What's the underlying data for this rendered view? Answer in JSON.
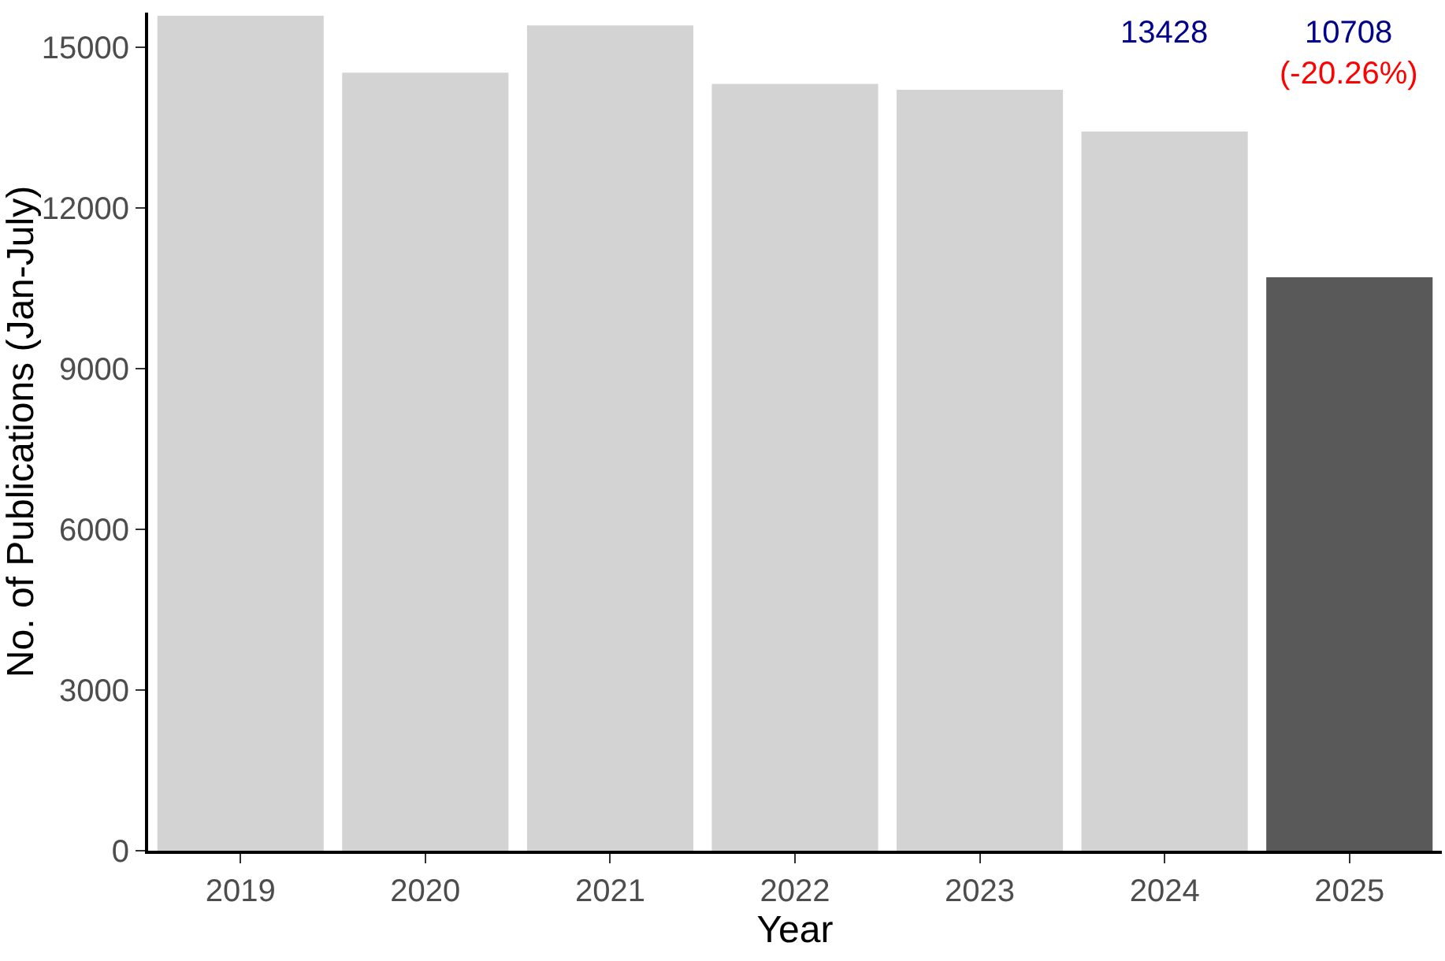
{
  "chart_data": {
    "type": "bar",
    "xlabel": "Year",
    "ylabel": "No. of Publications (Jan-July)",
    "categories": [
      "2019",
      "2020",
      "2021",
      "2022",
      "2023",
      "2024",
      "2025"
    ],
    "values": [
      15590,
      14530,
      15410,
      14320,
      14210,
      13428,
      10708
    ],
    "colors": [
      "#d3d3d3",
      "#d3d3d3",
      "#d3d3d3",
      "#d3d3d3",
      "#d3d3d3",
      "#d3d3d3",
      "#595959"
    ],
    "annotations": [
      "13428",
      "10708",
      "(-20.26%)"
    ],
    "ylim": [
      0,
      15650
    ],
    "yticks": [
      0,
      3000,
      6000,
      9000,
      12000,
      15000
    ]
  }
}
